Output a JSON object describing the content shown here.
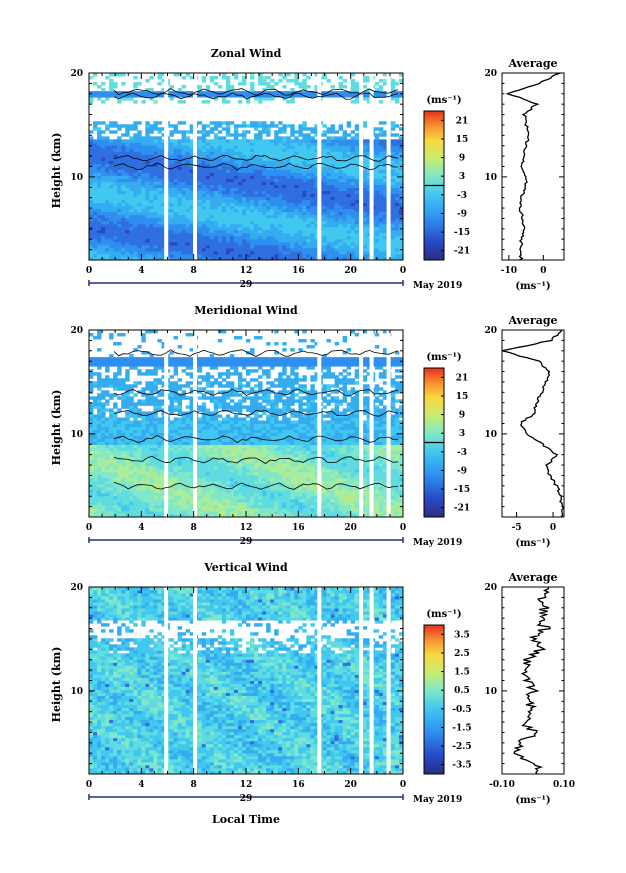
{
  "figure": {
    "date_label": "May 2019",
    "xlabel": "Local Time",
    "ylabel": "Height (km)",
    "day_label": "29",
    "avg_title": "Average",
    "unit_label": "(ms⁻¹)"
  },
  "chart_data": [
    {
      "type": "heatmap",
      "title": "Zonal Wind",
      "x_ticks": [
        "0",
        "4",
        "8",
        "12",
        "16",
        "20",
        "0"
      ],
      "xlim": [
        0,
        24
      ],
      "y_ticks": [
        "10",
        "20"
      ],
      "ylim": [
        2,
        20
      ],
      "colorbar": {
        "ticks": [
          "21",
          "15",
          "9",
          "3",
          "-3",
          "-9",
          "-15",
          "-21"
        ],
        "range": [
          -24,
          24
        ]
      },
      "data_gaps_hours": [
        5.9,
        8.1,
        17.6,
        20.8,
        21.6,
        22.9
      ],
      "average": {
        "x_ticks": [
          "-10",
          "0"
        ],
        "xlim": [
          -12,
          6
        ],
        "heights": [
          2,
          3,
          4,
          5,
          6,
          7,
          8,
          9,
          10,
          11,
          12,
          13,
          14,
          15,
          16,
          17,
          18,
          19,
          20
        ],
        "values": [
          -6.5,
          -6.5,
          -6.5,
          -5.5,
          -6,
          -7,
          -6.5,
          -5,
          -5,
          -6,
          -5.5,
          -5,
          -4,
          -5,
          -5.5,
          -2,
          -10,
          -1.5,
          5
        ]
      }
    },
    {
      "type": "heatmap",
      "title": "Meridional Wind",
      "x_ticks": [
        "0",
        "4",
        "8",
        "12",
        "16",
        "20",
        "0"
      ],
      "xlim": [
        0,
        24
      ],
      "y_ticks": [
        "10",
        "20"
      ],
      "ylim": [
        2,
        20
      ],
      "colorbar": {
        "ticks": [
          "21",
          "15",
          "9",
          "3",
          "-3",
          "-9",
          "-15",
          "-21"
        ],
        "range": [
          -24,
          24
        ]
      },
      "data_gaps_hours": [
        5.9,
        8.1,
        17.6,
        20.8,
        21.6,
        22.9
      ],
      "average": {
        "x_ticks": [
          "-5",
          "0"
        ],
        "xlim": [
          -7,
          1.5
        ],
        "heights": [
          2,
          3,
          4,
          5,
          6,
          7,
          8,
          9,
          10,
          11,
          12,
          13,
          14,
          15,
          16,
          17,
          18,
          19,
          20
        ],
        "values": [
          1.2,
          1.3,
          1,
          0.5,
          -0.5,
          -0.8,
          0.5,
          -1.5,
          -3.5,
          -4.5,
          -2.5,
          -2.3,
          -1.5,
          -1,
          -0.5,
          -2,
          -7,
          -0.3,
          1.2
        ]
      }
    },
    {
      "type": "heatmap",
      "title": "Vertical Wind",
      "x_ticks": [
        "0",
        "4",
        "8",
        "12",
        "16",
        "20",
        "0"
      ],
      "xlim": [
        0,
        24
      ],
      "y_ticks": [
        "10",
        "20"
      ],
      "ylim": [
        2,
        20
      ],
      "colorbar": {
        "ticks": [
          "3.5",
          "2.5",
          "1.5",
          "0.5",
          "-0.5",
          "-1.5",
          "-2.5",
          "-3.5"
        ],
        "range": [
          -4,
          4
        ]
      },
      "data_gaps_hours": [
        5.9,
        8.1,
        17.6,
        20.8,
        21.6,
        22.9
      ],
      "average": {
        "x_ticks": [
          "-0.10",
          "0.10"
        ],
        "xlim": [
          -0.1,
          0.1
        ],
        "heights": [
          2,
          3,
          4,
          5,
          6,
          7,
          8,
          9,
          10,
          11,
          12,
          13,
          14,
          15,
          16,
          17,
          18,
          19,
          20
        ],
        "values": [
          0.03,
          0.0,
          -0.07,
          -0.04,
          0.01,
          -0.03,
          0.0,
          -0.02,
          0.0,
          -0.02,
          -0.03,
          -0.02,
          0.02,
          0.0,
          0.04,
          0.02,
          0.04,
          0.03,
          0.05
        ]
      }
    }
  ]
}
